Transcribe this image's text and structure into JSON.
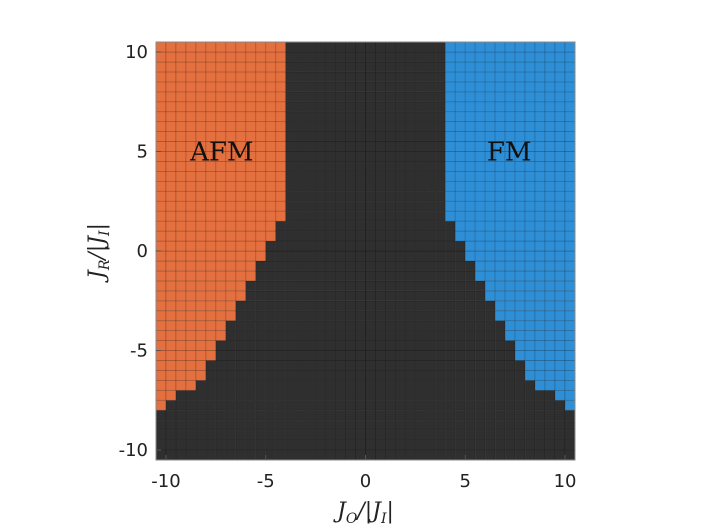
{
  "chart_data": {
    "type": "heatmap",
    "title": "",
    "xlabel": "J_O/|J_I|",
    "ylabel": "J_R/|J_I|",
    "xlim": [
      -10.5,
      10.5
    ],
    "ylim": [
      -10.5,
      10.5
    ],
    "xticks": [
      -10,
      -5,
      0,
      5,
      10
    ],
    "yticks": [
      -10,
      -5,
      0,
      5,
      10
    ],
    "x_tick_labels": [
      "-10",
      "-5",
      "0",
      "5",
      "10"
    ],
    "y_tick_labels": [
      "-10",
      "-5",
      "0",
      "5",
      "10"
    ],
    "grid_step": 0.5,
    "phases": [
      {
        "name": "AFM",
        "color": "#e4703f",
        "label_at": [
          -7.2,
          5.0
        ]
      },
      {
        "name": "FM",
        "color": "#2f8fd6",
        "label_at": [
          7.2,
          5.0
        ]
      },
      {
        "name": "",
        "color": "#2f2f2f"
      }
    ],
    "boundary": {
      "J_R": [
        10,
        2,
        1,
        0,
        -1,
        -2,
        -3,
        -4,
        -5,
        -6,
        -7,
        -8
      ],
      "J_O_abs": [
        4,
        4,
        4.5,
        5,
        5.5,
        6,
        6.5,
        7,
        7.5,
        8,
        9,
        10.5
      ]
    }
  },
  "labels": {
    "afm": "AFM",
    "fm": "FM",
    "xlabel": "J_O/|J_I|",
    "ylabel": "J_R/|J_I|"
  }
}
